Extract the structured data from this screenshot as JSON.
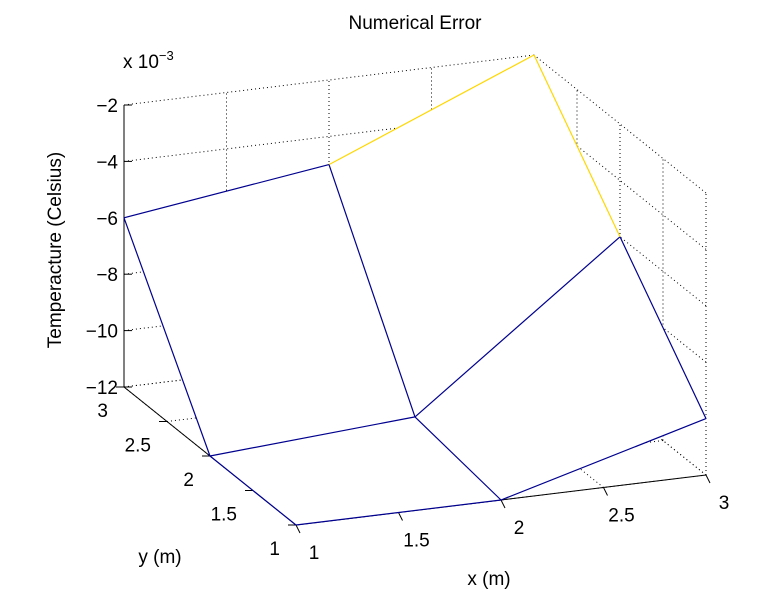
{
  "chart_data": {
    "type": "surface",
    "title": "Numerical Error",
    "xlabel": "x (m)",
    "ylabel": "y (m)",
    "zlabel": "Temperacture (Celsius)",
    "z_exponent_label": "x 10",
    "z_exponent_power": "−3",
    "xlim": [
      1,
      3
    ],
    "ylim": [
      1,
      3
    ],
    "zlim": [
      -12,
      -2
    ],
    "x_ticks": [
      1,
      1.5,
      2,
      2.5,
      3
    ],
    "y_ticks": [
      1,
      1.5,
      2,
      2.5,
      3
    ],
    "z_ticks": [
      -2,
      -4,
      -6,
      -8,
      -10,
      -12
    ],
    "x_tick_labels": [
      "1",
      "1.5",
      "2",
      "2.5",
      "3"
    ],
    "y_tick_labels": [
      "1",
      "1.5",
      "2",
      "2.5",
      "3"
    ],
    "z_tick_labels": [
      "−2",
      "−4",
      "−6",
      "−8",
      "−10",
      "−12"
    ],
    "grid": true,
    "x": [
      1,
      2,
      3
    ],
    "y": [
      1,
      2,
      3
    ],
    "z": [
      [
        -12,
        -12,
        -10
      ],
      [
        -12,
        -11.5,
        -6
      ],
      [
        -6,
        -5,
        -2
      ]
    ],
    "colors": {
      "low": "#00008f",
      "mid": "#1f4fb0",
      "high": "#ffd700"
    }
  }
}
